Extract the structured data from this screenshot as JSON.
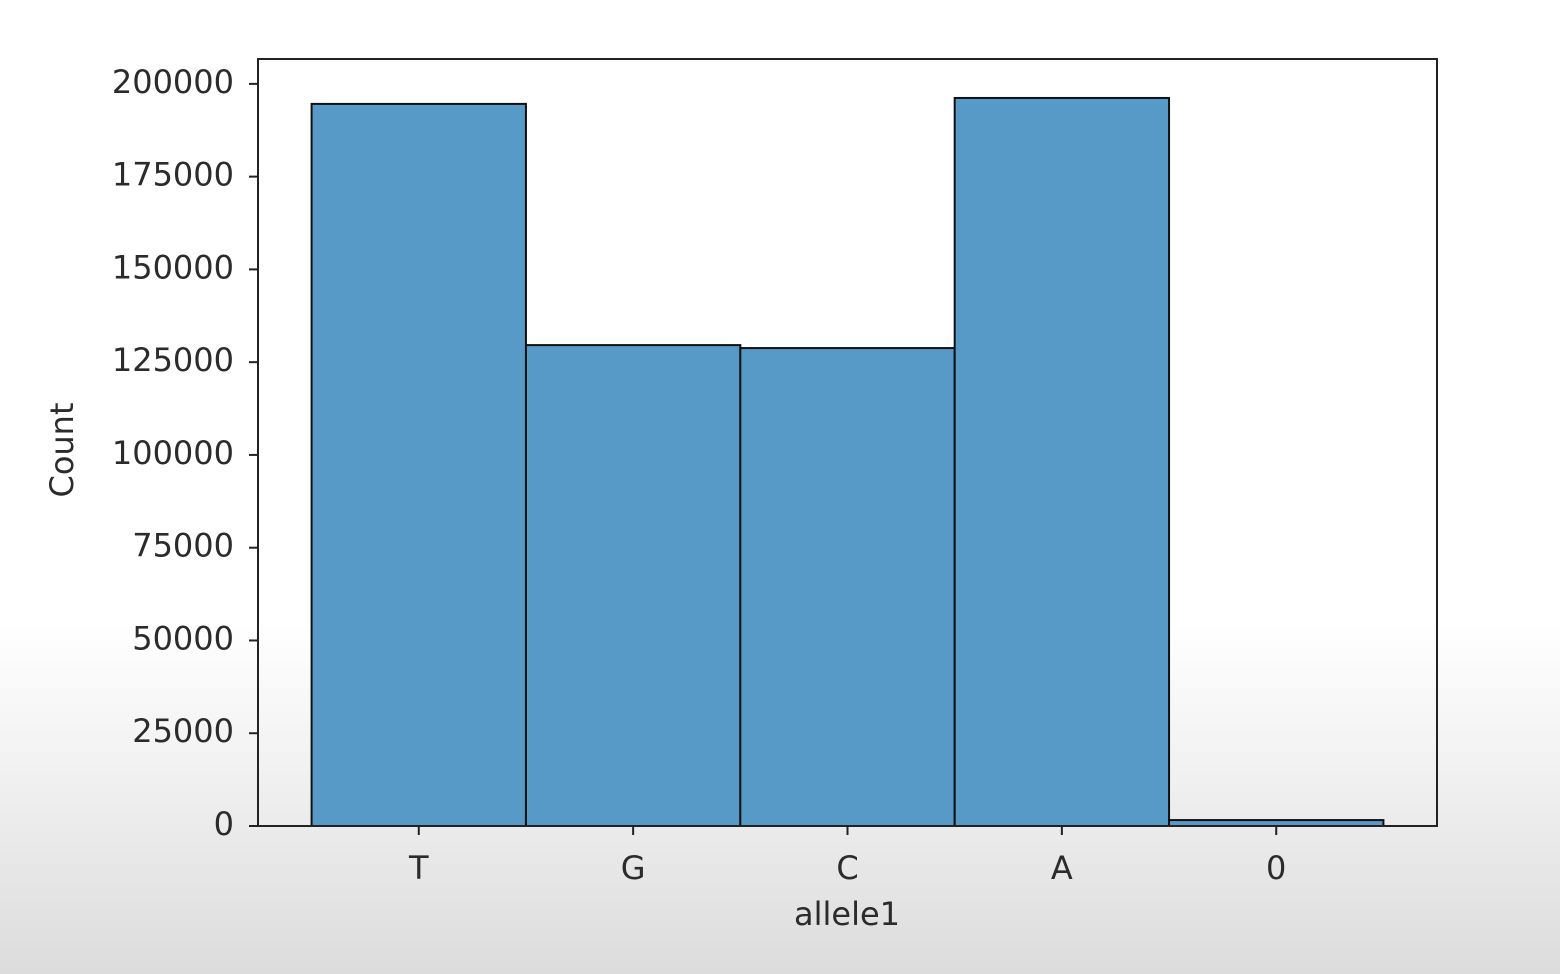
{
  "chart_data": {
    "type": "bar",
    "x_label": "allele1",
    "y_label": "Count",
    "categories": [
      "T",
      "G",
      "C",
      "A",
      "0"
    ],
    "values": [
      194600,
      129600,
      128800,
      196200,
      1600
    ],
    "color": "#5799c7",
    "ylim": [
      0,
      206700
    ],
    "yticks": [
      0,
      25000,
      50000,
      75000,
      100000,
      125000,
      150000,
      175000,
      200000
    ],
    "grid": false
  }
}
